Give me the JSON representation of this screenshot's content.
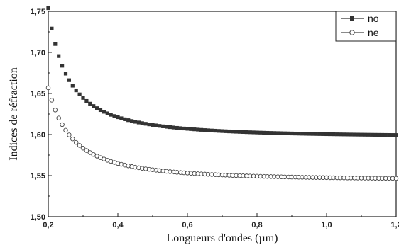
{
  "chart_data": {
    "type": "scatter",
    "xlabel": "Longueurs d'ondes (µm)",
    "ylabel": "Indices de réfraction",
    "xlim": [
      0.2,
      1.2
    ],
    "ylim": [
      1.5,
      1.75
    ],
    "x_ticks": [
      0.2,
      0.4,
      0.6,
      0.8,
      1.0,
      1.2
    ],
    "x_tick_labels": [
      "0,2",
      "0,4",
      "0,6",
      "0,8",
      "1,0",
      "1,2"
    ],
    "y_ticks": [
      1.5,
      1.55,
      1.6,
      1.65,
      1.7,
      1.75
    ],
    "y_tick_labels": [
      "1,50",
      "1,55",
      "1,60",
      "1,65",
      "1,70",
      "1,75"
    ],
    "grid": false,
    "legend_position": "top-right",
    "series": [
      {
        "name": "no",
        "marker": "filled-square",
        "color": "#333333",
        "sampling": {
          "x_start": 0.2,
          "x_end": 1.2,
          "step": 0.01
        },
        "model": {
          "form": "a + b / (x^2 - c)",
          "a": 1.597,
          "b": 0.00342,
          "c": 0.0182
        }
      },
      {
        "name": "ne",
        "marker": "open-circle",
        "color": "#444444",
        "sampling": {
          "x_start": 0.2,
          "x_end": 1.2,
          "step": 0.01
        },
        "model": {
          "form": "a + b / (x^2 - c)",
          "a": 1.5445,
          "b": 0.00298,
          "c": 0.0135
        }
      }
    ]
  }
}
